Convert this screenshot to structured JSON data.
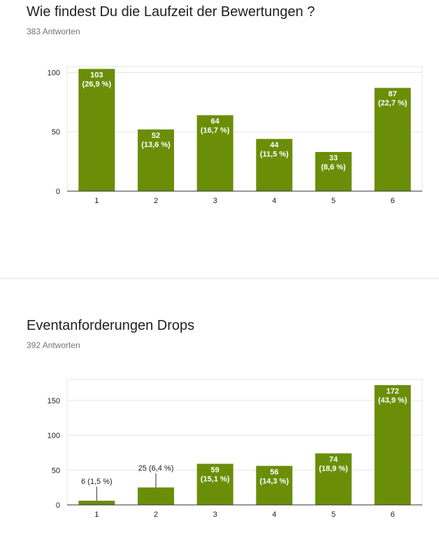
{
  "questions": [
    {
      "title": "Wie findest Du die Laufzeit der Bewertungen ?",
      "responses": "383 Antworten"
    },
    {
      "title": "Eventanforderungen Drops",
      "responses": "392 Antworten"
    }
  ],
  "colors": {
    "bar": "#6a8e08",
    "grid": "#e6e6e6",
    "axis": "#333333"
  },
  "chart_data": [
    {
      "type": "bar",
      "categories": [
        "1",
        "2",
        "3",
        "4",
        "5",
        "6"
      ],
      "values": [
        103,
        52,
        64,
        44,
        33,
        87
      ],
      "labels": [
        "103\n(26,9 %)",
        "52\n(13,6 %)",
        "64\n(16,7 %)",
        "44\n(11,5 %)",
        "33\n(8,6 %)",
        "87\n(22,7 %)"
      ],
      "yticks": [
        0,
        50,
        100
      ],
      "ylim": [
        0,
        105
      ],
      "grid": true
    },
    {
      "type": "bar",
      "categories": [
        "1",
        "2",
        "3",
        "4",
        "5",
        "6"
      ],
      "values": [
        6,
        25,
        59,
        56,
        74,
        172
      ],
      "labels": [
        "6 (1,5 %)",
        "25 (6,4 %)",
        "59\n(15,1 %)",
        "56\n(14,3 %)",
        "74\n(18,9 %)",
        "172\n(43,9 %)"
      ],
      "yticks": [
        0,
        50,
        100,
        150
      ],
      "ylim": [
        0,
        180
      ],
      "grid": true
    }
  ]
}
